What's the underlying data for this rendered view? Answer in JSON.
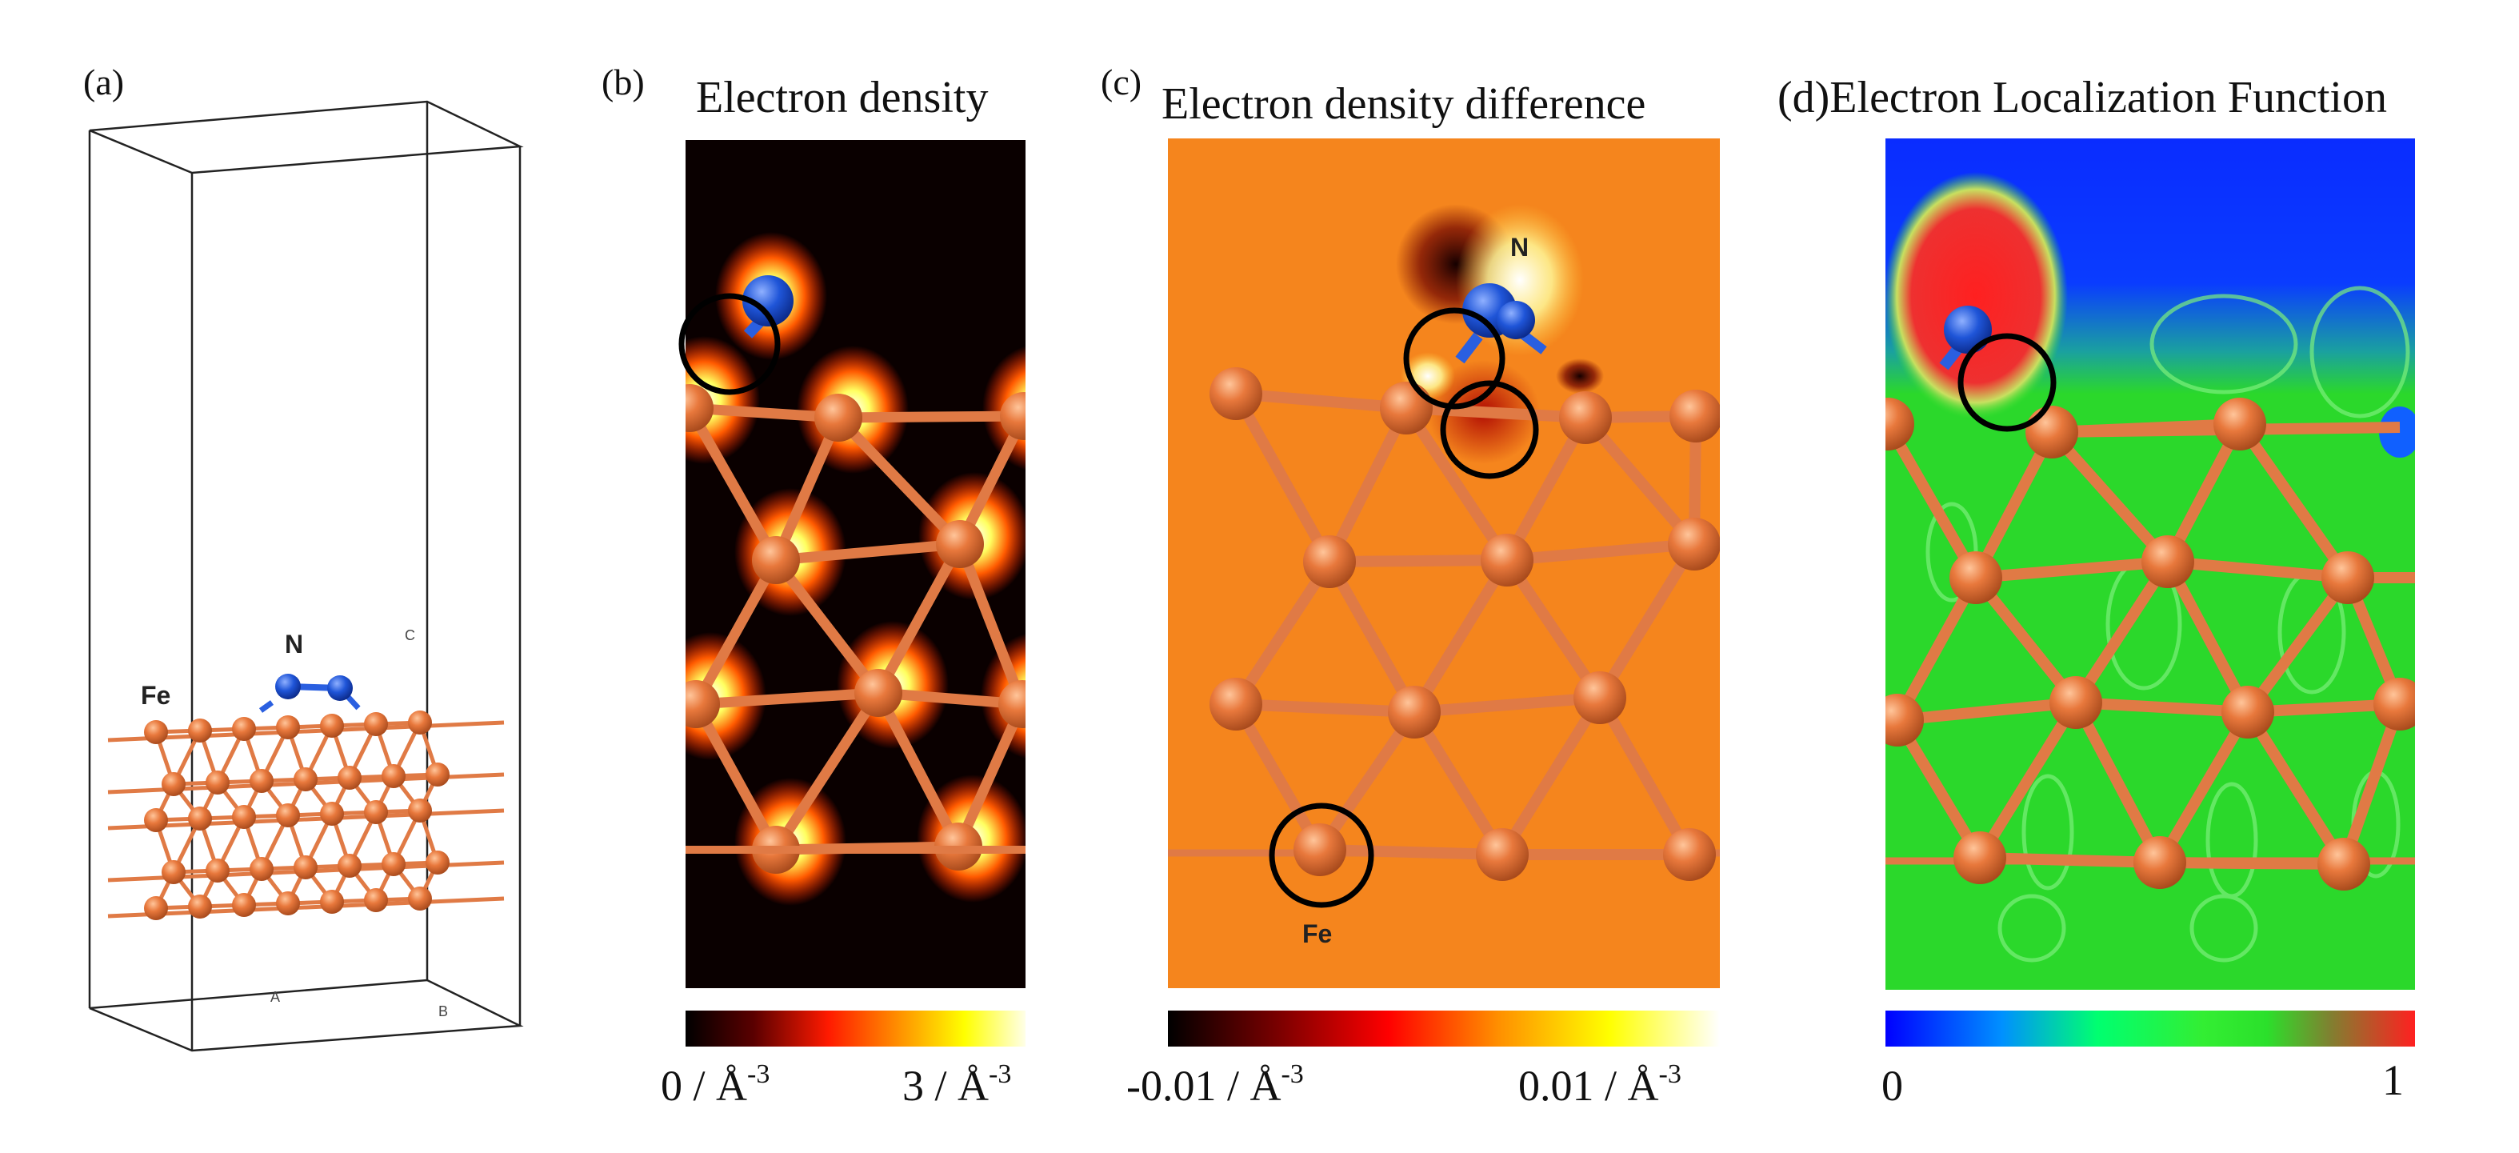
{
  "panels": {
    "a": {
      "tag": "(a)",
      "atom_fe": "Fe",
      "atom_n": "N",
      "axis_a": "A",
      "axis_b": "B",
      "axis_c": "C"
    },
    "b": {
      "tag": "(b)",
      "title": "Electron density",
      "scale_min": "0 / Å",
      "scale_max": "3 / Å",
      "unit_exp": "-3"
    },
    "c": {
      "tag": "(c)",
      "title": "Electron density difference",
      "scale_min": "-0.01 / Å",
      "scale_max": "0.01 / Å",
      "unit_exp": "-3",
      "atom_n": "N",
      "atom_fe": "Fe"
    },
    "d": {
      "tag": "(d)",
      "title": "Electron Localization Function",
      "scale_min": "0",
      "scale_max": "1"
    }
  },
  "colors": {
    "fe_atom": "#e8783c",
    "fe_bond": "#e07a45",
    "n_atom": "#1f55d8",
    "density_bg": "#0a0000",
    "difference_bg": "#f5851d",
    "elf_bg": "#2bd82b",
    "elf_top": "#0a2cff"
  },
  "colorbars": {
    "density": [
      "#000000",
      "#5a0000",
      "#ff1a00",
      "#ff8c00",
      "#ffff00",
      "#ffffe8"
    ],
    "difference": [
      "#000000",
      "#7a0000",
      "#ff0000",
      "#ff9000",
      "#ffff00",
      "#ffffff"
    ],
    "elf": [
      "#0000ff",
      "#0090ff",
      "#00ff70",
      "#33ee33",
      "#2be02b",
      "#808030",
      "#ff2020"
    ]
  }
}
